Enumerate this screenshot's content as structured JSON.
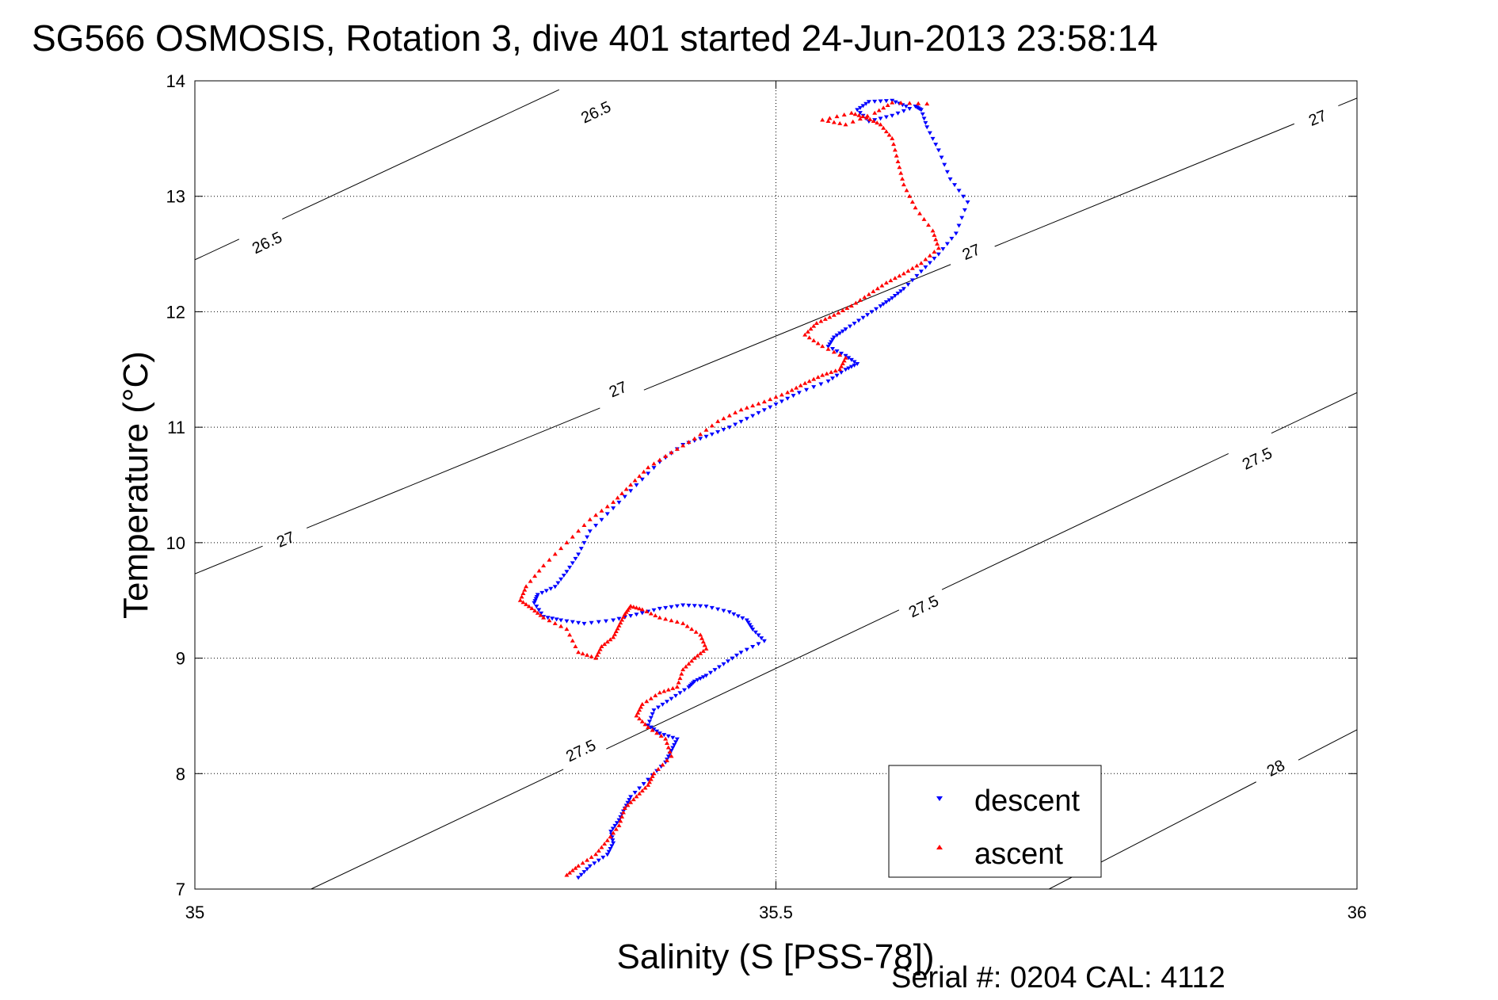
{
  "chart_data": {
    "type": "scatter",
    "title": "SG566 OSMOSIS, Rotation 3, dive 401 started 24-Jun-2013 23:58:14",
    "xlabel": "Salinity (S [PSS-78])",
    "ylabel": "Temperature (°C)",
    "footer": "Serial #: 0204  CAL: 4112",
    "xlim": [
      35,
      36
    ],
    "ylim": [
      7,
      14
    ],
    "xticks": [
      35,
      35.5,
      36
    ],
    "xtick_labels": [
      "35",
      "35.5",
      "36"
    ],
    "yticks": [
      7,
      8,
      9,
      10,
      11,
      12,
      13,
      14
    ],
    "ytick_labels": [
      "7",
      "8",
      "9",
      "10",
      "11",
      "12",
      "13",
      "14"
    ],
    "grid": true,
    "legend_position": "bottom-right",
    "density_contours": [
      {
        "level": "26.5",
        "points": [
          [
            35.0,
            12.45
          ],
          [
            35.4,
            14.33
          ]
        ],
        "labels": [
          [
            35.062,
            12.6
          ],
          [
            35.345,
            13.73
          ]
        ]
      },
      {
        "level": "27",
        "points": [
          [
            35.0,
            9.73
          ],
          [
            36.0,
            13.85
          ]
        ],
        "labels": [
          [
            35.078,
            10.03
          ],
          [
            35.364,
            11.33
          ],
          [
            35.668,
            12.52
          ],
          [
            35.966,
            13.68
          ]
        ]
      },
      {
        "level": "27.5",
        "points": [
          [
            35.1,
            7.0
          ],
          [
            36.0,
            11.3
          ]
        ],
        "labels": [
          [
            35.332,
            8.2
          ],
          [
            35.627,
            9.45
          ],
          [
            35.914,
            10.73
          ]
        ]
      },
      {
        "level": "28",
        "points": [
          [
            35.735,
            7.0
          ],
          [
            36.0,
            8.38
          ]
        ],
        "labels": [
          [
            35.93,
            8.05
          ]
        ]
      }
    ],
    "series": [
      {
        "name": "descent",
        "color": "#0000ff",
        "marker": "triangle-down",
        "x": [
          35.33,
          35.34,
          35.355,
          35.36,
          35.358,
          35.365,
          35.37,
          35.375,
          35.39,
          35.405,
          35.41,
          35.415,
          35.4,
          35.39,
          35.395,
          35.41,
          35.425,
          35.43,
          35.44,
          35.455,
          35.47,
          35.49,
          35.48,
          35.475,
          35.46,
          35.44,
          35.42,
          35.4,
          35.38,
          35.36,
          35.335,
          35.315,
          35.3,
          35.292,
          35.295,
          35.31,
          35.32,
          35.33,
          35.34,
          35.36,
          35.38,
          35.4,
          35.42,
          35.44,
          35.46,
          35.48,
          35.5,
          35.52,
          35.545,
          35.56,
          35.57,
          35.56,
          35.545,
          35.55,
          35.56,
          35.575,
          35.59,
          35.6,
          35.61,
          35.625,
          35.64,
          35.655,
          35.665,
          35.65,
          35.64,
          35.63,
          35.625,
          35.62,
          35.6,
          35.58,
          35.57,
          35.58,
          35.6,
          35.612
        ],
        "y": [
          7.1,
          7.2,
          7.3,
          7.4,
          7.5,
          7.6,
          7.7,
          7.8,
          7.95,
          8.1,
          8.2,
          8.3,
          8.35,
          8.42,
          8.55,
          8.65,
          8.75,
          8.8,
          8.85,
          8.95,
          9.05,
          9.15,
          9.25,
          9.33,
          9.4,
          9.45,
          9.46,
          9.43,
          9.38,
          9.33,
          9.3,
          9.33,
          9.36,
          9.48,
          9.55,
          9.62,
          9.75,
          9.9,
          10.1,
          10.3,
          10.5,
          10.7,
          10.85,
          10.92,
          11.0,
          11.1,
          11.2,
          11.3,
          11.4,
          11.5,
          11.55,
          11.62,
          11.7,
          11.78,
          11.85,
          11.95,
          12.05,
          12.12,
          12.2,
          12.35,
          12.5,
          12.68,
          12.95,
          13.15,
          13.4,
          13.6,
          13.75,
          13.78,
          13.7,
          13.65,
          13.75,
          13.82,
          13.83,
          13.78
        ]
      },
      {
        "name": "ascent",
        "color": "#ff0000",
        "marker": "triangle-up",
        "x": [
          35.32,
          35.33,
          35.345,
          35.355,
          35.365,
          35.37,
          35.38,
          35.39,
          35.395,
          35.41,
          35.405,
          35.39,
          35.38,
          35.385,
          35.4,
          35.415,
          35.42,
          35.43,
          35.44,
          35.435,
          35.42,
          35.4,
          35.385,
          35.375,
          35.37,
          35.365,
          35.36,
          35.35,
          35.345,
          35.33,
          35.32,
          35.3,
          35.29,
          35.28,
          35.285,
          35.3,
          35.32,
          35.34,
          35.36,
          35.375,
          35.39,
          35.41,
          35.43,
          35.45,
          35.47,
          35.49,
          35.51,
          35.525,
          35.54,
          35.555,
          35.56,
          35.54,
          35.525,
          35.535,
          35.55,
          35.565,
          35.58,
          35.595,
          35.61,
          35.625,
          35.64,
          35.635,
          35.62,
          35.61,
          35.605,
          35.6,
          35.59,
          35.578,
          35.565,
          35.54,
          35.56,
          35.585,
          35.6,
          35.63
        ],
        "y": [
          7.12,
          7.2,
          7.3,
          7.42,
          7.55,
          7.7,
          7.8,
          7.9,
          8.0,
          8.15,
          8.3,
          8.4,
          8.5,
          8.6,
          8.7,
          8.75,
          8.9,
          9.0,
          9.08,
          9.2,
          9.3,
          9.35,
          9.42,
          9.45,
          9.38,
          9.28,
          9.18,
          9.1,
          9.0,
          9.05,
          9.25,
          9.35,
          9.43,
          9.5,
          9.62,
          9.8,
          10.0,
          10.2,
          10.35,
          10.5,
          10.65,
          10.78,
          10.9,
          11.05,
          11.15,
          11.22,
          11.3,
          11.38,
          11.45,
          11.5,
          11.6,
          11.7,
          11.8,
          11.9,
          11.97,
          12.05,
          12.15,
          12.25,
          12.33,
          12.42,
          12.55,
          12.7,
          12.9,
          13.1,
          13.3,
          13.5,
          13.62,
          13.68,
          13.72,
          13.66,
          13.62,
          13.72,
          13.81,
          13.8
        ]
      }
    ]
  }
}
